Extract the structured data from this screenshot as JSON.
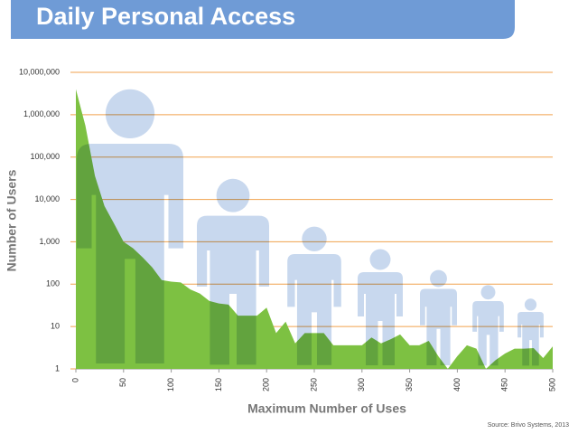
{
  "chart_data": {
    "type": "area",
    "title": "Daily Personal Access",
    "x_label": "Maximum Number of Uses",
    "y_label": "Number of Users",
    "source": "Source: Brivo Systems, 2013",
    "y_scale": "log",
    "color": "#7dc142",
    "grid": true,
    "x": [
      0,
      10,
      20,
      30,
      40,
      50,
      60,
      70,
      80,
      90,
      100,
      110,
      120,
      130,
      140,
      150,
      160,
      170,
      180,
      190,
      200,
      210,
      220,
      230,
      240,
      250,
      260,
      270,
      280,
      290,
      300,
      310,
      320,
      330,
      340,
      350,
      360,
      370,
      380,
      390,
      400,
      410,
      420,
      430,
      440,
      450,
      460,
      470,
      480,
      490,
      500
    ],
    "values": [
      4000000,
      550000,
      36000,
      7000,
      2700,
      1000,
      700,
      430,
      250,
      125,
      115,
      110,
      75,
      60,
      40,
      35,
      33,
      18,
      18,
      18,
      28,
      7,
      13,
      4,
      7,
      7,
      7,
      3.6,
      3.6,
      3.6,
      3.6,
      5.5,
      4,
      5,
      6.5,
      3.6,
      3.6,
      4.6,
      2,
      1,
      2,
      3.6,
      3,
      1,
      1.6,
      2.3,
      3,
      3,
      3.1,
      1.8,
      3.4
    ],
    "xlim": [
      0,
      500
    ],
    "xticks": [
      0,
      50,
      100,
      150,
      200,
      250,
      300,
      350,
      400,
      450,
      500
    ],
    "ylim": [
      1,
      10000000
    ],
    "yticks": [
      1,
      10,
      100,
      {
        "value": 1000,
        "label": "1,000"
      },
      {
        "value": 10000,
        "label": "10,000"
      },
      {
        "value": 100000,
        "label": "100,000"
      },
      {
        "value": 1000000,
        "label": "1,000,000"
      },
      {
        "value": 10000000,
        "label": "10,000,000"
      }
    ]
  }
}
